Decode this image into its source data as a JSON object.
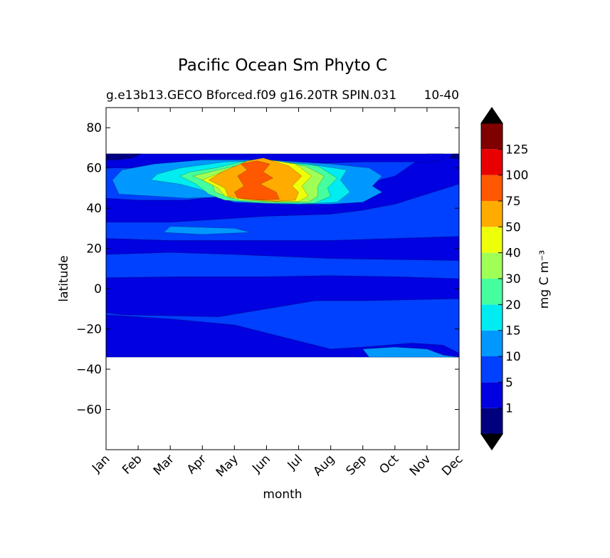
{
  "chart_data": {
    "type": "heatmap",
    "subtype": "filled-contour",
    "title": "Pacific Ocean Sm Phyto C",
    "subtitle_left": "g.e13b13.GECO Bforced.f09 g16.20TR SPIN.031",
    "subtitle_right": "10-40",
    "xlabel": "month",
    "ylabel": "latitude",
    "xticks": [
      "Jan",
      "Feb",
      "Mar",
      "Apr",
      "May",
      "Jun",
      "Jul",
      "Aug",
      "Sep",
      "Oct",
      "Nov",
      "Dec"
    ],
    "xlim": [
      0,
      11
    ],
    "yticks": [
      80,
      60,
      40,
      20,
      0,
      -20,
      -40,
      -60
    ],
    "ytick_labels": [
      "80",
      "60",
      "40",
      "20",
      "0",
      "−20",
      "−40",
      "−60"
    ],
    "ylim": [
      -80,
      90
    ],
    "data_lat_range": [
      -34,
      67
    ],
    "colorbar": {
      "label": "mg C m⁻³",
      "extend": "both",
      "tick_labels": [
        "1",
        "5",
        "10",
        "15",
        "20",
        "30",
        "40",
        "50",
        "75",
        "100",
        "125"
      ],
      "levels": [
        1,
        5,
        10,
        15,
        20,
        30,
        40,
        50,
        75,
        100,
        125
      ],
      "colors": [
        "#00007f",
        "#0000e0",
        "#0040ff",
        "#0098ff",
        "#00ecf0",
        "#45ff9e",
        "#a0ff56",
        "#eeff0a",
        "#ffab00",
        "#ff5800",
        "#e80000",
        "#800000"
      ],
      "over_color": "#000000",
      "under_color": "#000000"
    },
    "regions": [
      {
        "level": 2,
        "description": "background band",
        "points": [
          [
            0,
            -34
          ],
          [
            11,
            -34
          ],
          [
            11,
            67
          ],
          [
            0,
            67
          ]
        ]
      },
      {
        "level": 1,
        "points": [
          [
            0,
            -34
          ],
          [
            11,
            -34
          ],
          [
            11,
            -32
          ],
          [
            10.5,
            -28
          ],
          [
            9.5,
            -27
          ],
          [
            8,
            -29
          ],
          [
            7,
            -30
          ],
          [
            5.5,
            -24
          ],
          [
            4,
            -18
          ],
          [
            2,
            -15
          ],
          [
            1,
            -14
          ],
          [
            0,
            -13
          ]
        ]
      },
      {
        "level": 1,
        "points": [
          [
            0,
            -12
          ],
          [
            0.5,
            -13
          ],
          [
            2,
            -13.5
          ],
          [
            3.5,
            -14
          ],
          [
            5,
            -10
          ],
          [
            6.5,
            -6
          ],
          [
            8,
            -6
          ],
          [
            11,
            -5
          ],
          [
            11,
            5
          ],
          [
            9,
            6
          ],
          [
            7,
            6.5
          ],
          [
            5,
            6
          ],
          [
            2.5,
            6
          ],
          [
            0,
            5.5
          ]
        ]
      },
      {
        "level": 1,
        "points": [
          [
            0,
            17
          ],
          [
            2,
            18
          ],
          [
            4,
            17
          ],
          [
            7,
            15
          ],
          [
            11,
            14
          ],
          [
            11,
            26
          ],
          [
            9,
            25
          ],
          [
            7,
            24
          ],
          [
            4,
            24
          ],
          [
            2,
            24
          ],
          [
            0,
            25
          ]
        ]
      },
      {
        "level": 1,
        "points": [
          [
            0,
            33
          ],
          [
            2,
            33
          ],
          [
            3,
            34
          ],
          [
            5,
            36
          ],
          [
            7,
            37
          ],
          [
            8,
            39
          ],
          [
            9,
            42
          ],
          [
            10,
            47
          ],
          [
            11,
            52
          ],
          [
            11,
            67
          ],
          [
            10,
            67
          ],
          [
            9,
            56
          ],
          [
            8,
            52
          ],
          [
            6.5,
            49
          ],
          [
            5,
            47
          ],
          [
            3.5,
            46
          ],
          [
            2.5,
            44
          ],
          [
            1,
            44
          ],
          [
            0,
            45
          ]
        ]
      },
      {
        "level": 1,
        "points": [
          [
            0,
            60
          ],
          [
            2,
            60
          ],
          [
            4,
            61
          ],
          [
            6,
            62
          ],
          [
            8,
            63
          ],
          [
            10,
            63
          ],
          [
            10.5,
            64
          ],
          [
            10.5,
            67
          ],
          [
            0,
            67
          ]
        ]
      },
      {
        "level": 3,
        "points": [
          [
            8.2,
            -34
          ],
          [
            8,
            -30
          ],
          [
            9,
            -29
          ],
          [
            10,
            -30
          ],
          [
            10.5,
            -33
          ],
          [
            11,
            -34
          ]
        ]
      },
      {
        "level": 3,
        "points": [
          [
            1.8,
            28
          ],
          [
            3,
            27
          ],
          [
            4.5,
            28
          ],
          [
            4,
            30
          ],
          [
            2,
            31
          ]
        ]
      },
      {
        "level": 3,
        "points": [
          [
            0.4,
            47
          ],
          [
            1.5,
            46
          ],
          [
            2.5,
            45
          ],
          [
            3.5,
            45.5
          ],
          [
            4,
            43
          ],
          [
            5.5,
            42
          ],
          [
            7,
            42
          ],
          [
            8,
            43
          ],
          [
            8.6,
            48
          ],
          [
            8.3,
            51
          ],
          [
            8.6,
            56
          ],
          [
            8.2,
            60
          ],
          [
            7,
            62
          ],
          [
            5,
            64
          ],
          [
            3,
            64
          ],
          [
            1.5,
            62
          ],
          [
            0.5,
            59
          ],
          [
            0.2,
            54
          ]
        ]
      },
      {
        "level": 4,
        "points": [
          [
            1.4,
            54
          ],
          [
            2.3,
            52
          ],
          [
            3,
            49
          ],
          [
            3.5,
            45
          ],
          [
            4.5,
            43
          ],
          [
            6,
            42
          ],
          [
            7.2,
            43
          ],
          [
            7.6,
            48
          ],
          [
            7.3,
            54
          ],
          [
            7.5,
            59
          ],
          [
            6.3,
            62
          ],
          [
            5,
            63.5
          ],
          [
            3.7,
            63
          ],
          [
            2.3,
            60
          ],
          [
            1.6,
            57
          ]
        ]
      },
      {
        "level": 5,
        "points": [
          [
            2.3,
            56
          ],
          [
            2.8,
            52
          ],
          [
            3.2,
            47
          ],
          [
            3.7,
            44
          ],
          [
            5,
            42.5
          ],
          [
            6.5,
            42.5
          ],
          [
            7,
            46
          ],
          [
            6.9,
            50
          ],
          [
            7.2,
            55
          ],
          [
            6.6,
            61
          ],
          [
            5.2,
            63.5
          ],
          [
            4.2,
            63
          ],
          [
            3.4,
            60
          ],
          [
            2.6,
            58
          ]
        ]
      },
      {
        "level": 6,
        "points": [
          [
            2.7,
            56
          ],
          [
            3.3,
            52
          ],
          [
            3.4,
            48
          ],
          [
            3.9,
            45
          ],
          [
            5.1,
            43
          ],
          [
            6.3,
            43
          ],
          [
            6.6,
            46
          ],
          [
            6.6,
            51
          ],
          [
            6.8,
            56
          ],
          [
            6.2,
            61
          ],
          [
            5,
            64
          ],
          [
            4.3,
            62
          ],
          [
            3.5,
            59
          ]
        ]
      },
      {
        "level": 7,
        "points": [
          [
            3,
            54
          ],
          [
            3.5,
            50
          ],
          [
            3.7,
            46
          ],
          [
            4.2,
            44
          ],
          [
            5.3,
            43.3
          ],
          [
            6,
            43.3
          ],
          [
            6.3,
            46
          ],
          [
            6.1,
            51
          ],
          [
            6.4,
            56
          ],
          [
            5.9,
            62
          ],
          [
            4.9,
            64.5
          ],
          [
            4.3,
            62
          ],
          [
            3.6,
            58
          ]
        ]
      },
      {
        "level": 8,
        "points": [
          [
            3.2,
            54
          ],
          [
            3.7,
            50
          ],
          [
            3.8,
            46
          ],
          [
            4.3,
            44.5
          ],
          [
            5.3,
            43.5
          ],
          [
            5.9,
            44
          ],
          [
            6,
            48
          ],
          [
            5.8,
            51
          ],
          [
            6.1,
            56
          ],
          [
            5.7,
            61
          ],
          [
            4.9,
            65
          ],
          [
            4.4,
            63.5
          ],
          [
            3.6,
            58
          ]
        ]
      },
      {
        "level": 9,
        "points": [
          [
            4.1,
            45
          ],
          [
            4.8,
            44
          ],
          [
            5.4,
            44.5
          ],
          [
            5.3,
            48
          ],
          [
            4.8,
            52
          ],
          [
            5.2,
            55
          ],
          [
            4.9,
            58
          ],
          [
            5.1,
            62
          ],
          [
            4.7,
            63.5
          ],
          [
            4.2,
            62
          ],
          [
            4.4,
            59
          ],
          [
            4.1,
            56
          ],
          [
            4.3,
            51
          ],
          [
            4,
            48
          ]
        ]
      },
      {
        "level": 0,
        "points": [
          [
            0,
            64
          ],
          [
            0.3,
            64
          ],
          [
            0.8,
            65
          ],
          [
            1.1,
            67
          ],
          [
            0,
            67
          ]
        ]
      },
      {
        "level": 0,
        "points": [
          [
            10.7,
            65
          ],
          [
            11,
            64.5
          ],
          [
            11,
            67
          ],
          [
            10.8,
            67
          ]
        ]
      }
    ]
  }
}
